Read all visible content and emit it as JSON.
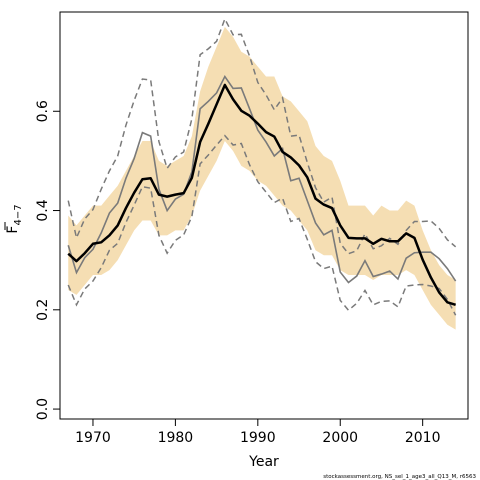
{
  "chart_data": {
    "type": "line",
    "xlabel": "Year",
    "ylabel_main": "F",
    "ylabel_sub": "4−7",
    "credit": "stockassessment.org, NS_sel_1_age3_all_Q13_M, r6563",
    "xlim": [
      1966,
      2015.5
    ],
    "ylim": [
      -0.02,
      0.8
    ],
    "x_ticks": [
      1970,
      1980,
      1990,
      2000,
      2010
    ],
    "y_ticks": [
      0.0,
      0.2,
      0.4,
      0.6
    ],
    "x_tick_labels": [
      "1970",
      "1980",
      "1990",
      "2000",
      "2010"
    ],
    "y_tick_labels": [
      "0.0",
      "0.2",
      "0.4",
      "0.6"
    ],
    "colors": {
      "band": "#f5deb3",
      "estimate": "#000000",
      "previous": "#7a7a7a",
      "previous_ci": "#7a7a7a"
    },
    "x": [
      1967,
      1968,
      1969,
      1970,
      1971,
      1972,
      1973,
      1974,
      1975,
      1976,
      1977,
      1978,
      1979,
      1980,
      1981,
      1982,
      1983,
      1984,
      1985,
      1986,
      1987,
      1988,
      1989,
      1990,
      1991,
      1992,
      1993,
      1994,
      1995,
      1996,
      1997,
      1998,
      1999,
      2000,
      2001,
      2002,
      2003,
      2004,
      2005,
      2006,
      2007,
      2008,
      2009,
      2010,
      2011,
      2012,
      2013,
      2014
    ],
    "series": [
      {
        "role": "estimate",
        "values": [
          0.313,
          0.298,
          0.314,
          0.333,
          0.336,
          0.35,
          0.37,
          0.405,
          0.436,
          0.463,
          0.465,
          0.432,
          0.428,
          0.432,
          0.435,
          0.466,
          0.538,
          0.575,
          0.614,
          0.653,
          0.624,
          0.601,
          0.591,
          0.575,
          0.558,
          0.549,
          0.518,
          0.507,
          0.491,
          0.467,
          0.424,
          0.412,
          0.405,
          0.37,
          0.345,
          0.344,
          0.344,
          0.333,
          0.343,
          0.338,
          0.338,
          0.354,
          0.345,
          0.301,
          0.265,
          0.235,
          0.215,
          0.21
        ]
      },
      {
        "role": "band_upper",
        "values": [
          0.39,
          0.37,
          0.39,
          0.41,
          0.41,
          0.43,
          0.45,
          0.48,
          0.51,
          0.54,
          0.54,
          0.5,
          0.49,
          0.5,
          0.51,
          0.55,
          0.64,
          0.69,
          0.73,
          0.77,
          0.75,
          0.72,
          0.71,
          0.69,
          0.67,
          0.67,
          0.63,
          0.62,
          0.6,
          0.58,
          0.53,
          0.51,
          0.5,
          0.46,
          0.41,
          0.41,
          0.41,
          0.39,
          0.41,
          0.4,
          0.4,
          0.42,
          0.41,
          0.36,
          0.32,
          0.29,
          0.27,
          0.26
        ]
      },
      {
        "role": "band_lower",
        "values": [
          0.24,
          0.23,
          0.25,
          0.27,
          0.27,
          0.28,
          0.3,
          0.33,
          0.36,
          0.38,
          0.38,
          0.35,
          0.35,
          0.36,
          0.36,
          0.39,
          0.44,
          0.47,
          0.5,
          0.54,
          0.52,
          0.49,
          0.48,
          0.46,
          0.45,
          0.43,
          0.41,
          0.4,
          0.38,
          0.36,
          0.32,
          0.31,
          0.31,
          0.28,
          0.27,
          0.27,
          0.27,
          0.26,
          0.27,
          0.27,
          0.27,
          0.28,
          0.27,
          0.24,
          0.21,
          0.19,
          0.17,
          0.16
        ]
      },
      {
        "role": "previous",
        "values": [
          0.33,
          0.275,
          0.305,
          0.322,
          0.355,
          0.395,
          0.415,
          0.465,
          0.505,
          0.557,
          0.55,
          0.443,
          0.4,
          0.423,
          0.433,
          0.478,
          0.605,
          0.62,
          0.637,
          0.67,
          0.646,
          0.647,
          0.605,
          0.562,
          0.538,
          0.51,
          0.525,
          0.46,
          0.465,
          0.42,
          0.375,
          0.351,
          0.36,
          0.276,
          0.255,
          0.268,
          0.299,
          0.267,
          0.272,
          0.278,
          0.262,
          0.304,
          0.315,
          0.316,
          0.316,
          0.303,
          0.283,
          0.258
        ]
      },
      {
        "role": "previous_upper",
        "values": [
          0.42,
          0.345,
          0.383,
          0.402,
          0.443,
          0.48,
          0.51,
          0.572,
          0.622,
          0.665,
          0.663,
          0.539,
          0.485,
          0.508,
          0.518,
          0.585,
          0.714,
          0.726,
          0.741,
          0.786,
          0.754,
          0.755,
          0.711,
          0.658,
          0.633,
          0.603,
          0.627,
          0.55,
          0.552,
          0.497,
          0.446,
          0.417,
          0.427,
          0.334,
          0.313,
          0.319,
          0.353,
          0.323,
          0.329,
          0.344,
          0.332,
          0.36,
          0.378,
          0.378,
          0.379,
          0.364,
          0.341,
          0.327
        ]
      },
      {
        "role": "previous_lower",
        "values": [
          0.25,
          0.21,
          0.242,
          0.258,
          0.285,
          0.32,
          0.334,
          0.376,
          0.411,
          0.448,
          0.445,
          0.35,
          0.314,
          0.34,
          0.351,
          0.388,
          0.494,
          0.512,
          0.532,
          0.551,
          0.532,
          0.535,
          0.492,
          0.458,
          0.437,
          0.416,
          0.425,
          0.378,
          0.384,
          0.342,
          0.297,
          0.283,
          0.288,
          0.219,
          0.199,
          0.213,
          0.239,
          0.21,
          0.217,
          0.218,
          0.206,
          0.248,
          0.25,
          0.251,
          0.248,
          0.243,
          0.221,
          0.189
        ]
      }
    ]
  }
}
